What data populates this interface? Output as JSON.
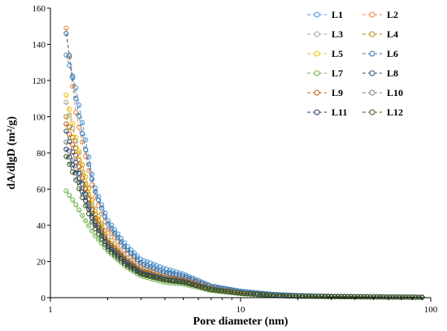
{
  "chart_data": {
    "type": "scatter",
    "title": "",
    "xlabel": "Pore diameter (nm)",
    "ylabel": "dA/dlgD (m²/g)",
    "xscale": "log",
    "xlim": [
      1,
      100
    ],
    "ylim": [
      0,
      160
    ],
    "x_ticks": [
      1,
      10,
      100
    ],
    "y_ticks": [
      0,
      20,
      40,
      60,
      80,
      100,
      120,
      140,
      160
    ],
    "grid": false,
    "legend_position": "top-right",
    "marker": "open-circle",
    "line_style": "dashed",
    "x": [
      1.21,
      1.35,
      1.5,
      1.7,
      2.0,
      2.5,
      3.0,
      4.0,
      5.0,
      7.0,
      10,
      15,
      20,
      30,
      50,
      70,
      90
    ],
    "series": [
      {
        "name": "L1",
        "color": "#4a8fd0",
        "values": [
          134,
          118,
          92,
          62,
          43,
          29,
          21,
          16,
          13,
          6.5,
          3.6,
          1.8,
          1.2,
          0.8,
          0.5,
          0.4,
          0.3
        ]
      },
      {
        "name": "L2",
        "color": "#e8833a",
        "values": [
          149,
          104,
          82,
          57,
          38,
          25,
          18,
          13,
          11,
          5.5,
          3.0,
          1.5,
          1.0,
          0.7,
          0.5,
          0.4,
          0.3
        ]
      },
      {
        "name": "L3",
        "color": "#a5a5a5",
        "values": [
          108,
          88,
          70,
          50,
          34,
          22,
          16,
          12,
          10,
          5.0,
          2.8,
          1.4,
          0.9,
          0.6,
          0.4,
          0.3,
          0.3
        ]
      },
      {
        "name": "L4",
        "color": "#b8860b",
        "values": [
          100,
          84,
          66,
          47,
          32,
          21,
          15,
          11,
          9.5,
          4.8,
          2.6,
          1.3,
          0.9,
          0.6,
          0.4,
          0.3,
          0.2
        ]
      },
      {
        "name": "L5",
        "color": "#f2c200",
        "values": [
          112,
          90,
          70,
          49,
          32,
          20,
          13,
          9.5,
          8.5,
          4.5,
          2.4,
          1.2,
          0.8,
          0.6,
          0.4,
          0.3,
          0.2
        ]
      },
      {
        "name": "L6",
        "color": "#2e75b6",
        "values": [
          146,
          112,
          86,
          60,
          41,
          27,
          19,
          14,
          12,
          6.0,
          3.3,
          1.7,
          1.1,
          0.7,
          0.5,
          0.4,
          0.3
        ]
      },
      {
        "name": "L7",
        "color": "#6ab04c",
        "values": [
          59,
          52,
          44,
          35,
          26,
          17,
          12,
          8.5,
          7.5,
          4.0,
          2.2,
          1.1,
          0.8,
          0.5,
          0.4,
          0.3,
          0.2
        ]
      },
      {
        "name": "L8",
        "color": "#1f4e79",
        "values": [
          92,
          76,
          60,
          43,
          30,
          20,
          14,
          10.5,
          9.0,
          4.6,
          2.5,
          1.3,
          0.9,
          0.6,
          0.4,
          0.3,
          0.2
        ]
      },
      {
        "name": "L9",
        "color": "#c55a11",
        "values": [
          96,
          80,
          63,
          45,
          31,
          20.5,
          14.5,
          11,
          9.5,
          4.7,
          2.6,
          1.3,
          0.9,
          0.6,
          0.4,
          0.3,
          0.2
        ]
      },
      {
        "name": "L10",
        "color": "#7f7f7f",
        "values": [
          86,
          72,
          58,
          42,
          29,
          19.5,
          14,
          10.5,
          9.0,
          4.6,
          2.5,
          1.3,
          0.9,
          0.6,
          0.4,
          0.3,
          0.2
        ]
      },
      {
        "name": "L11",
        "color": "#203864",
        "values": [
          82,
          70,
          56,
          41,
          28.5,
          19,
          13.5,
          10,
          8.8,
          4.5,
          2.4,
          1.2,
          0.9,
          0.6,
          0.4,
          0.3,
          0.2
        ]
      },
      {
        "name": "L12",
        "color": "#385723",
        "values": [
          78,
          66,
          53,
          39,
          27,
          18,
          13,
          9.8,
          8.5,
          4.4,
          2.4,
          1.2,
          0.8,
          0.6,
          0.4,
          0.3,
          0.2
        ]
      }
    ]
  }
}
